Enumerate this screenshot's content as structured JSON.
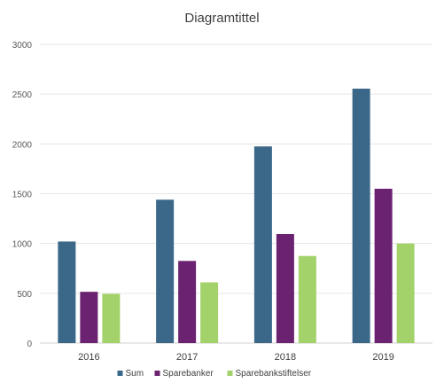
{
  "chart_data": {
    "type": "bar",
    "title": "Diagramtittel",
    "categories": [
      "2016",
      "2017",
      "2018",
      "2019"
    ],
    "series": [
      {
        "name": "Sum",
        "values": [
          1020,
          1440,
          1975,
          2555
        ],
        "color": "#3b6889"
      },
      {
        "name": "Sparebanker",
        "values": [
          515,
          825,
          1095,
          1550
        ],
        "color": "#6b2270"
      },
      {
        "name": "Sparebankstiftelser",
        "values": [
          495,
          610,
          875,
          1000
        ],
        "color": "#a3d16a"
      }
    ],
    "ylim": [
      0,
      3000
    ],
    "yticks": [
      0,
      500,
      1000,
      1500,
      2000,
      2500,
      3000
    ],
    "grid": true,
    "legend": "bottom"
  }
}
